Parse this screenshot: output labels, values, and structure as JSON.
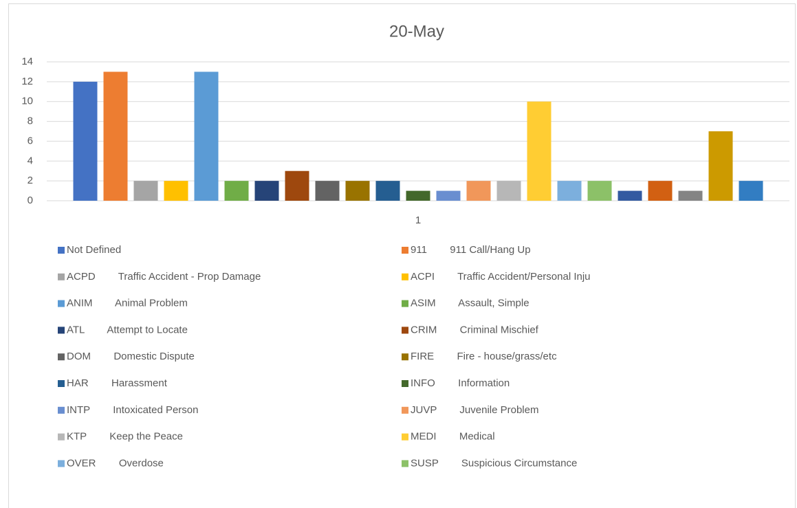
{
  "chart_data": {
    "type": "bar",
    "title": "20-May",
    "categories": [
      "1"
    ],
    "ylim": [
      0,
      14
    ],
    "yticks": [
      0,
      2,
      4,
      6,
      8,
      10,
      12,
      14
    ],
    "grid": true,
    "series": [
      {
        "name": "Not Defined",
        "color": "#4472c4",
        "values": [
          12
        ]
      },
      {
        "name": "911        911 Call/Hang Up",
        "color": "#ed7d31",
        "values": [
          13
        ]
      },
      {
        "name": "ACPD        Traffic Accident - Prop Damage",
        "color": "#a5a5a5",
        "values": [
          2
        ]
      },
      {
        "name": "ACPI        Traffic Accident/Personal Inju",
        "color": "#ffc000",
        "values": [
          2
        ]
      },
      {
        "name": "ANIM        Animal Problem",
        "color": "#5b9bd5",
        "values": [
          13
        ]
      },
      {
        "name": "ASIM        Assault, Simple",
        "color": "#70ad47",
        "values": [
          2
        ]
      },
      {
        "name": "ATL        Attempt to Locate",
        "color": "#264478",
        "values": [
          2
        ]
      },
      {
        "name": "CRIM        Criminal Mischief",
        "color": "#9e480e",
        "values": [
          3
        ]
      },
      {
        "name": "DOM        Domestic Dispute",
        "color": "#636363",
        "values": [
          2
        ]
      },
      {
        "name": "FIRE        Fire - house/grass/etc",
        "color": "#997300",
        "values": [
          2
        ]
      },
      {
        "name": "HAR        Harassment",
        "color": "#255e91",
        "values": [
          2
        ]
      },
      {
        "name": "INFO        Information",
        "color": "#43682b",
        "values": [
          1
        ]
      },
      {
        "name": "INTP        Intoxicated Person",
        "color": "#698ed0",
        "values": [
          1
        ]
      },
      {
        "name": "JUVP        Juvenile Problem",
        "color": "#f1975a",
        "values": [
          2
        ]
      },
      {
        "name": "KTP        Keep the Peace",
        "color": "#b7b7b7",
        "values": [
          2
        ]
      },
      {
        "name": "MEDI        Medical",
        "color": "#ffcd33",
        "values": [
          10
        ]
      },
      {
        "name": "OVER        Overdose",
        "color": "#7cafdd",
        "values": [
          2
        ]
      },
      {
        "name": "SUSP        Suspicious Circumstance",
        "color": "#8cc168",
        "values": [
          2
        ]
      },
      {
        "name": null,
        "color": "#335aa1",
        "values": [
          1
        ]
      },
      {
        "name": null,
        "color": "#d26012",
        "values": [
          2
        ]
      },
      {
        "name": null,
        "color": "#848484",
        "values": [
          1
        ]
      },
      {
        "name": null,
        "color": "#cc9a00",
        "values": [
          7
        ]
      },
      {
        "name": null,
        "color": "#327dc2",
        "values": [
          2
        ]
      }
    ]
  }
}
